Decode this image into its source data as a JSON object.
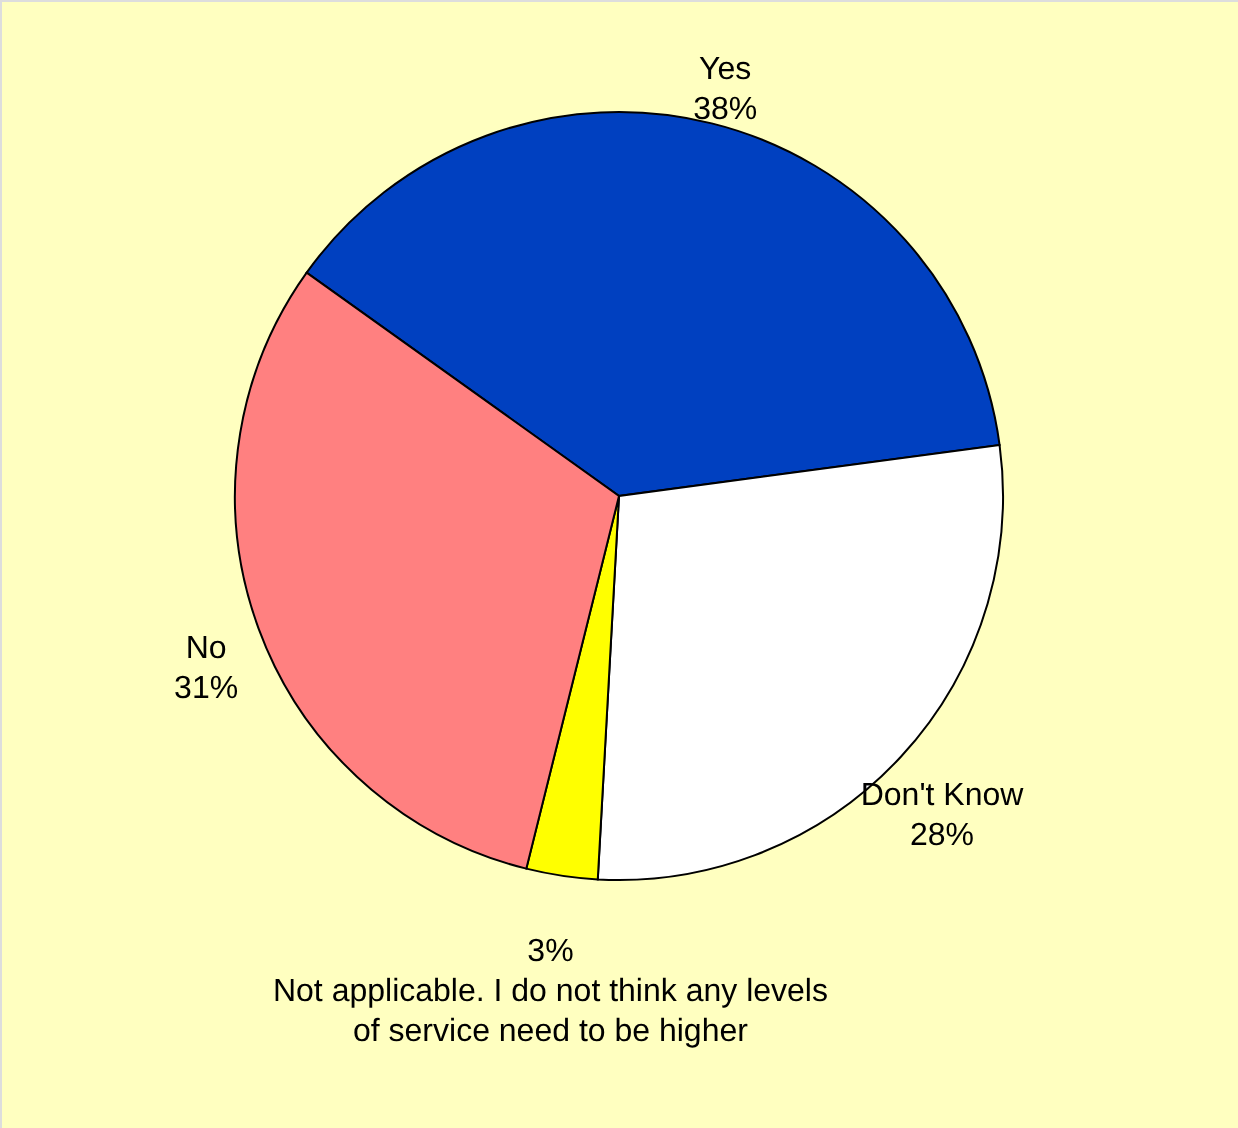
{
  "chart_data": {
    "type": "pie",
    "categories": [
      "Yes",
      "Don't Know",
      "Not applicable. I do not think any levels of service need  to be higher",
      "No"
    ],
    "values": [
      38,
      28,
      3,
      31
    ],
    "value_labels": [
      "38%",
      "28%",
      "3%",
      "31%"
    ],
    "colors": [
      "#0040c0",
      "#ffffff",
      "#ffff00",
      "#ff8080"
    ]
  }
}
